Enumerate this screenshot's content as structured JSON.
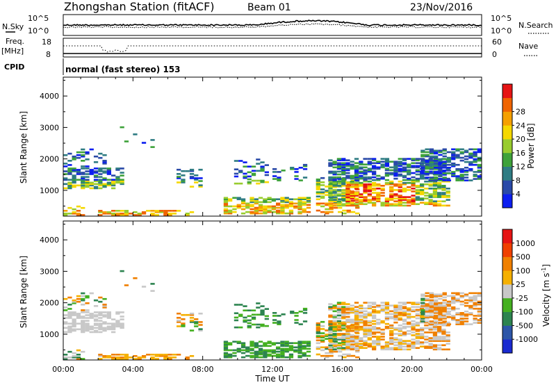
{
  "header": {
    "station": "Zhongshan Station (fitACF)",
    "beam": "Beam 01",
    "date": "23/Nov/2016"
  },
  "panels": {
    "noise": {
      "left_label": "N.Sky",
      "right_label": "N.Search",
      "left_ticks": [
        "10^5",
        "10^0"
      ],
      "right_ticks": [
        "10^5",
        "10^0"
      ]
    },
    "freq": {
      "left_label_1": "Freq.",
      "left_label_2": "[MHz]",
      "right_label": "Nave",
      "left_ticks": [
        "18",
        "8"
      ],
      "right_ticks": [
        "60",
        "0"
      ]
    },
    "cpid": {
      "label": "CPID",
      "text": "normal (fast stereo) 153"
    }
  },
  "chart_data": [
    {
      "type": "heatmap",
      "name": "power",
      "ylabel": "Slant Range [km]",
      "yticks": [
        1000,
        2000,
        3000,
        4000
      ],
      "ylim": [
        180,
        4600
      ],
      "xticks": [
        "00:00",
        "04:00",
        "08:00",
        "12:00",
        "16:00",
        "20:00",
        "00:00"
      ],
      "xlim_hours": [
        0,
        24
      ],
      "colorbar": {
        "label": "Power [dB]",
        "ticks": [
          "4",
          "8",
          "12",
          "16",
          "20",
          "24",
          "28"
        ],
        "colors": [
          "#0c1ef0",
          "#2a4aa8",
          "#2f7c83",
          "#3ea23a",
          "#98cc2e",
          "#f5d800",
          "#f5a000",
          "#f06400",
          "#e61414"
        ]
      }
    },
    {
      "type": "heatmap",
      "name": "velocity",
      "ylabel": "Slant Range [km]",
      "yticks": [
        1000,
        2000,
        3000,
        4000
      ],
      "ylim": [
        180,
        4600
      ],
      "xticks": [
        "00:00",
        "04:00",
        "08:00",
        "12:00",
        "16:00",
        "20:00",
        "00:00"
      ],
      "xlim_hours": [
        0,
        24
      ],
      "xlabel": "Time UT",
      "colorbar": {
        "label": "Velocity [m s",
        "label_sup": "-1",
        "label_end": "]",
        "ticks": [
          "1000",
          "500",
          "100",
          "25",
          "-25",
          "-100",
          "-500",
          "-1000"
        ],
        "colors": [
          "#1a2ad0",
          "#2d56a8",
          "#2d8450",
          "#44b020",
          "#c8c8c8",
          "#f5b000",
          "#f08000",
          "#f04000",
          "#e61414"
        ]
      }
    }
  ]
}
